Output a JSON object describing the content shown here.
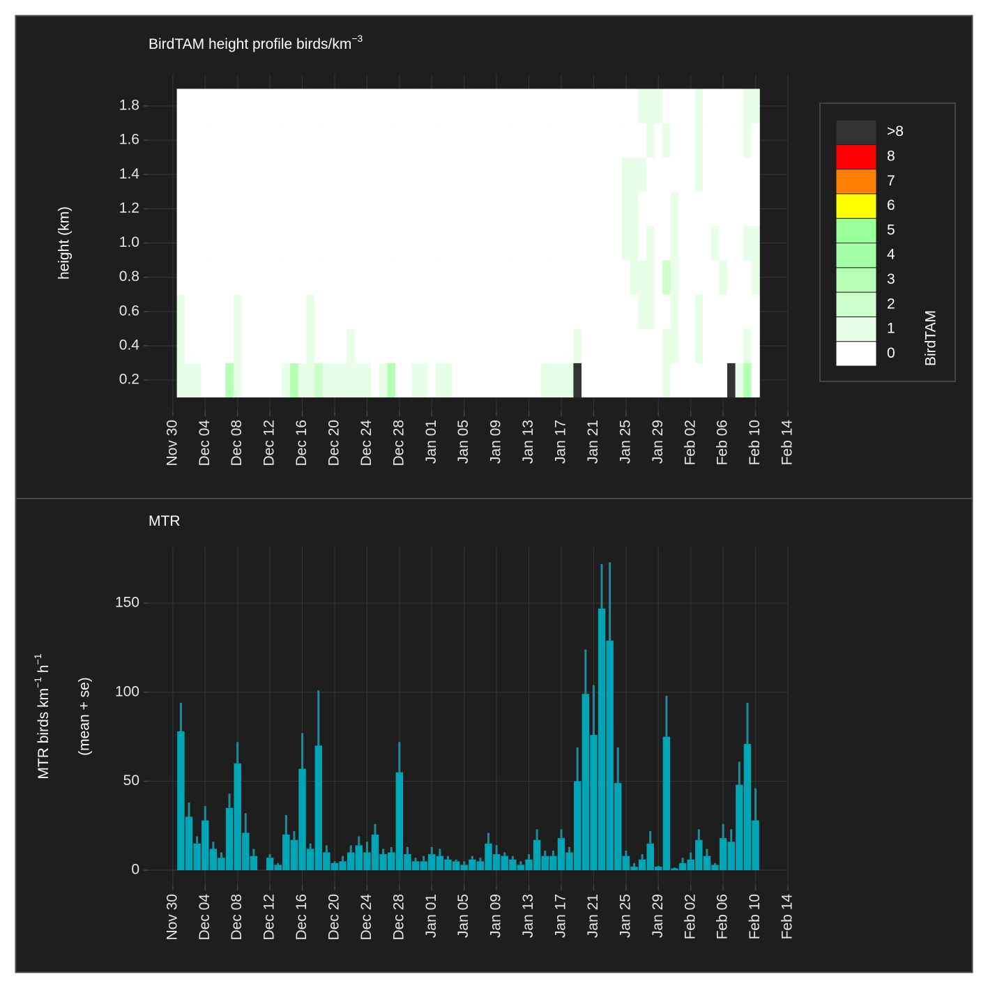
{
  "chart_data": [
    {
      "type": "heatmap",
      "title": "BirdTAM height profile birds/km",
      "title_sup": "−3",
      "ylabel": "height (km)",
      "x": [
        "Dec 01",
        "Dec 02",
        "Dec 03",
        "Dec 04",
        "Dec 05",
        "Dec 06",
        "Dec 07",
        "Dec 08",
        "Dec 09",
        "Dec 10",
        "Dec 11",
        "Dec 12",
        "Dec 13",
        "Dec 14",
        "Dec 15",
        "Dec 16",
        "Dec 17",
        "Dec 18",
        "Dec 19",
        "Dec 20",
        "Dec 21",
        "Dec 22",
        "Dec 23",
        "Dec 24",
        "Dec 25",
        "Dec 26",
        "Dec 27",
        "Dec 28",
        "Dec 29",
        "Dec 30",
        "Dec 31",
        "Jan 01",
        "Jan 02",
        "Jan 03",
        "Jan 04",
        "Jan 05",
        "Jan 06",
        "Jan 07",
        "Jan 08",
        "Jan 09",
        "Jan 10",
        "Jan 11",
        "Jan 12",
        "Jan 13",
        "Jan 14",
        "Jan 15",
        "Jan 16",
        "Jan 17",
        "Jan 18",
        "Jan 19",
        "Jan 20",
        "Jan 21",
        "Jan 22",
        "Jan 23",
        "Jan 24",
        "Jan 25",
        "Jan 26",
        "Jan 27",
        "Jan 28",
        "Jan 29",
        "Jan 30",
        "Jan 31",
        "Feb 01",
        "Feb 02",
        "Feb 03",
        "Feb 04",
        "Feb 05",
        "Feb 06",
        "Feb 07",
        "Feb 08",
        "Feb 09",
        "Feb 10"
      ],
      "y": [
        0.2,
        0.4,
        0.6,
        0.8,
        1.0,
        1.2,
        1.4,
        1.6,
        1.8
      ],
      "z": [
        [
          1,
          1,
          1,
          0,
          0,
          0,
          3,
          1,
          0,
          0,
          0,
          0,
          0,
          1,
          3,
          1,
          1,
          2,
          1,
          1,
          1,
          1,
          1,
          1,
          0,
          1,
          3,
          0,
          0,
          1,
          1,
          0,
          1,
          1,
          0,
          0,
          0,
          0,
          0,
          0,
          0,
          0,
          0,
          0,
          0,
          1,
          1,
          1,
          1,
          ">8",
          0,
          0,
          0,
          0,
          0,
          0,
          0,
          0,
          0,
          0,
          1,
          0,
          0,
          0,
          0,
          0,
          0,
          0,
          ">8",
          1,
          3,
          0
        ],
        [
          1,
          0,
          0,
          0,
          0,
          0,
          0,
          1,
          0,
          0,
          0,
          0,
          0,
          0,
          0,
          0,
          1,
          0,
          0,
          0,
          0,
          1,
          0,
          0,
          0,
          0,
          0,
          0,
          0,
          0,
          0,
          0,
          0,
          0,
          0,
          0,
          0,
          0,
          0,
          0,
          0,
          0,
          0,
          0,
          0,
          0,
          0,
          0,
          0,
          1,
          0,
          0,
          0,
          0,
          0,
          0,
          0,
          0,
          0,
          0,
          1,
          1,
          0,
          0,
          1,
          0,
          0,
          0,
          0,
          0,
          1,
          0
        ],
        [
          1,
          0,
          0,
          0,
          0,
          0,
          0,
          1,
          0,
          0,
          0,
          0,
          0,
          0,
          0,
          0,
          1,
          0,
          0,
          0,
          0,
          0,
          0,
          0,
          0,
          0,
          0,
          0,
          0,
          0,
          0,
          0,
          0,
          0,
          0,
          0,
          0,
          0,
          0,
          0,
          0,
          0,
          0,
          0,
          0,
          0,
          0,
          0,
          0,
          0,
          0,
          0,
          0,
          0,
          0,
          0,
          0,
          1,
          1,
          0,
          0,
          1,
          0,
          0,
          1,
          0,
          0,
          0,
          0,
          0,
          0,
          0
        ],
        [
          0,
          0,
          0,
          0,
          0,
          0,
          0,
          0,
          0,
          0,
          0,
          0,
          0,
          0,
          0,
          0,
          0,
          0,
          0,
          0,
          0,
          0,
          0,
          0,
          0,
          0,
          0,
          0,
          0,
          0,
          0,
          0,
          0,
          0,
          0,
          0,
          0,
          0,
          0,
          0,
          0,
          0,
          0,
          0,
          0,
          0,
          0,
          0,
          0,
          0,
          0,
          0,
          0,
          0,
          0,
          0,
          1,
          1,
          1,
          0,
          2,
          1,
          0,
          0,
          0,
          0,
          0,
          1,
          0,
          0,
          0,
          1
        ],
        [
          0,
          0,
          0,
          0,
          0,
          0,
          0,
          0,
          0,
          0,
          0,
          0,
          0,
          0,
          0,
          0,
          0,
          0,
          0,
          0,
          0,
          0,
          0,
          0,
          0,
          0,
          0,
          0,
          0,
          0,
          0,
          0,
          0,
          0,
          0,
          0,
          0,
          0,
          0,
          0,
          0,
          0,
          0,
          0,
          0,
          0,
          0,
          0,
          0,
          0,
          0,
          0,
          0,
          0,
          0,
          1,
          1,
          0,
          1,
          0,
          0,
          1,
          0,
          0,
          0,
          0,
          1,
          0,
          0,
          0,
          1,
          1
        ],
        [
          0,
          0,
          0,
          0,
          0,
          0,
          0,
          0,
          0,
          0,
          0,
          0,
          0,
          0,
          0,
          0,
          0,
          0,
          0,
          0,
          0,
          0,
          0,
          0,
          0,
          0,
          0,
          0,
          0,
          0,
          0,
          0,
          0,
          0,
          0,
          0,
          0,
          0,
          0,
          0,
          0,
          0,
          0,
          0,
          0,
          0,
          0,
          0,
          0,
          0,
          0,
          0,
          0,
          0,
          0,
          1,
          1,
          0,
          0,
          0,
          0,
          1,
          0,
          0,
          0,
          0,
          0,
          0,
          0,
          0,
          0,
          0
        ],
        [
          0,
          0,
          0,
          0,
          0,
          0,
          0,
          0,
          0,
          0,
          0,
          0,
          0,
          0,
          0,
          0,
          0,
          0,
          0,
          0,
          0,
          0,
          0,
          0,
          0,
          0,
          0,
          0,
          0,
          0,
          0,
          0,
          0,
          0,
          0,
          0,
          0,
          0,
          0,
          0,
          0,
          0,
          0,
          0,
          0,
          0,
          0,
          0,
          0,
          0,
          0,
          0,
          0,
          0,
          0,
          1,
          1,
          1,
          0,
          0,
          0,
          0,
          0,
          0,
          1,
          0,
          0,
          0,
          0,
          0,
          0,
          0
        ],
        [
          0,
          0,
          0,
          0,
          0,
          0,
          0,
          0,
          0,
          0,
          0,
          0,
          0,
          0,
          0,
          0,
          0,
          0,
          0,
          0,
          0,
          0,
          0,
          0,
          0,
          0,
          0,
          0,
          0,
          0,
          0,
          0,
          0,
          0,
          0,
          0,
          0,
          0,
          0,
          0,
          0,
          0,
          0,
          0,
          0,
          0,
          0,
          0,
          0,
          0,
          0,
          0,
          0,
          0,
          0,
          0,
          0,
          0,
          1,
          0,
          1,
          0,
          0,
          0,
          1,
          0,
          0,
          0,
          0,
          0,
          1,
          0
        ],
        [
          0,
          0,
          0,
          0,
          0,
          0,
          0,
          0,
          0,
          0,
          0,
          0,
          0,
          0,
          0,
          0,
          0,
          0,
          0,
          0,
          0,
          0,
          0,
          0,
          0,
          0,
          0,
          0,
          0,
          0,
          0,
          0,
          0,
          0,
          0,
          0,
          0,
          0,
          0,
          0,
          0,
          0,
          0,
          0,
          0,
          0,
          0,
          0,
          0,
          0,
          0,
          0,
          0,
          0,
          0,
          0,
          0,
          1,
          1,
          1,
          0,
          0,
          0,
          0,
          1,
          0,
          0,
          0,
          0,
          0,
          1,
          1
        ]
      ],
      "legend": {
        "title": "BirdTAM",
        "levels": [
          0,
          1,
          2,
          3,
          4,
          5,
          6,
          7,
          8,
          ">8"
        ],
        "colors": [
          "#ffffff",
          "#e6ffe6",
          "#ccffcc",
          "#b3ffb3",
          "#a3ffa3",
          "#99ff99",
          "#ffff00",
          "#ff8000",
          "#ff0000",
          "#333333"
        ]
      },
      "xlim": [
        "Nov 27",
        "Feb 14"
      ],
      "xticks": [
        "Nov 30",
        "Dec 04",
        "Dec 08",
        "Dec 12",
        "Dec 16",
        "Dec 20",
        "Dec 24",
        "Dec 28",
        "Jan 01",
        "Jan 05",
        "Jan 09",
        "Jan 13",
        "Jan 17",
        "Jan 21",
        "Jan 25",
        "Jan 29",
        "Feb 02",
        "Feb 06",
        "Feb 10",
        "Feb 14"
      ],
      "ylim": [
        0.017,
        1.983
      ],
      "yticks": [
        0.2,
        0.4,
        0.6,
        0.8,
        {
          "value": 1,
          "label": "1.0"
        },
        1.2,
        1.4,
        1.6,
        1.8
      ],
      "grid": true
    },
    {
      "type": "bar",
      "title": "MTR",
      "ylabel": [
        "MTR  birds km",
        "−1",
        " h",
        "−1"
      ],
      "ylabel_note": "(mean + se)",
      "color": "#00a6b5",
      "error_color": "#238b95",
      "x": [
        "Dec 01",
        "Dec 02",
        "Dec 03",
        "Dec 04",
        "Dec 05",
        "Dec 06",
        "Dec 07",
        "Dec 08",
        "Dec 09",
        "Dec 10",
        "Dec 11",
        "Dec 12",
        "Dec 13",
        "Dec 14",
        "Dec 15",
        "Dec 16",
        "Dec 17",
        "Dec 18",
        "Dec 19",
        "Dec 20",
        "Dec 21",
        "Dec 22",
        "Dec 23",
        "Dec 24",
        "Dec 25",
        "Dec 26",
        "Dec 27",
        "Dec 28",
        "Dec 29",
        "Dec 30",
        "Dec 31",
        "Jan 01",
        "Jan 02",
        "Jan 03",
        "Jan 04",
        "Jan 05",
        "Jan 06",
        "Jan 07",
        "Jan 08",
        "Jan 09",
        "Jan 10",
        "Jan 11",
        "Jan 12",
        "Jan 13",
        "Jan 14",
        "Jan 15",
        "Jan 16",
        "Jan 17",
        "Jan 18",
        "Jan 19",
        "Jan 20",
        "Jan 21",
        "Jan 22",
        "Jan 23",
        "Jan 24",
        "Jan 25",
        "Jan 26",
        "Jan 27",
        "Jan 28",
        "Jan 29",
        "Jan 30",
        "Jan 31",
        "Feb 01",
        "Feb 02",
        "Feb 03",
        "Feb 04",
        "Feb 05",
        "Feb 06",
        "Feb 07",
        "Feb 08",
        "Feb 09",
        "Feb 10"
      ],
      "values": [
        78,
        30,
        15,
        28,
        12,
        7,
        35,
        60,
        21,
        8,
        null,
        7,
        3,
        20,
        17,
        57,
        12,
        70,
        10,
        4,
        5,
        10,
        14,
        10,
        20,
        9,
        10,
        55,
        9,
        5,
        5,
        9,
        8,
        6,
        5,
        3,
        6,
        5,
        15,
        9,
        8,
        6,
        3,
        6,
        17,
        8,
        8,
        18,
        10,
        50,
        99,
        76,
        147,
        129,
        49,
        8,
        2,
        6,
        15,
        2,
        75,
        1,
        4,
        6,
        17,
        8,
        3,
        18,
        16,
        48,
        71,
        28
      ],
      "errors": [
        16,
        8,
        4,
        8,
        4,
        3,
        8,
        12,
        11,
        4,
        null,
        2,
        1,
        11,
        5,
        20,
        3,
        31,
        4,
        1,
        3,
        4,
        5,
        6,
        6,
        3,
        3,
        17,
        4,
        2,
        3,
        4,
        4,
        2,
        1,
        2,
        2,
        2,
        6,
        5,
        2,
        2,
        2,
        3,
        6,
        3,
        3,
        5,
        3,
        19,
        25,
        28,
        25,
        44,
        20,
        3,
        2,
        3,
        7,
        0.5,
        23,
        0.5,
        3,
        4,
        6,
        4,
        1,
        8,
        7,
        13,
        23,
        18
      ],
      "xlim": [
        "Nov 27",
        "Feb 14"
      ],
      "xticks": [
        "Nov 30",
        "Dec 04",
        "Dec 08",
        "Dec 12",
        "Dec 16",
        "Dec 20",
        "Dec 24",
        "Dec 28",
        "Jan 01",
        "Jan 05",
        "Jan 09",
        "Jan 13",
        "Jan 17",
        "Jan 21",
        "Jan 25",
        "Jan 29",
        "Feb 02",
        "Feb 06",
        "Feb 10",
        "Feb 14"
      ],
      "ylim": [
        -8.6,
        181.4
      ],
      "yticks": [
        0,
        50,
        100,
        150
      ],
      "grid": true
    }
  ]
}
